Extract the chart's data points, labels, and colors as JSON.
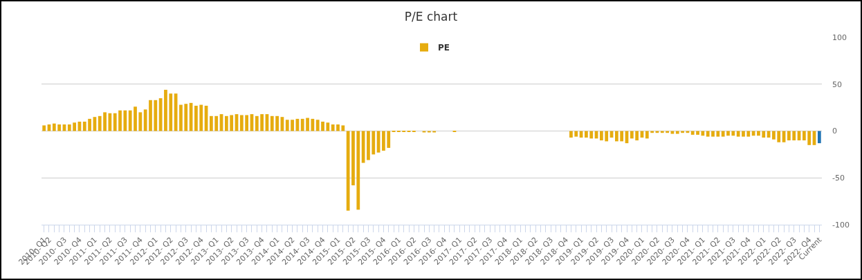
{
  "chart_data": {
    "type": "bar",
    "title": "P/E chart",
    "categories": [
      "2010- Q1",
      "2010- Q2",
      null,
      null,
      "2010- Q3",
      null,
      null,
      "2010- Q4",
      null,
      null,
      "2011- Q1",
      null,
      null,
      "2011- Q2",
      null,
      null,
      "2011- Q3",
      null,
      null,
      "2011- Q4",
      null,
      null,
      "2012- Q1",
      null,
      null,
      "2012- Q2",
      null,
      null,
      "2012- Q3",
      null,
      null,
      "2012- Q4",
      null,
      null,
      "2013- Q1",
      null,
      null,
      "2013- Q2",
      null,
      null,
      "2013- Q3",
      null,
      null,
      "2013- Q4",
      null,
      null,
      "2014- Q1",
      null,
      null,
      "2014- Q2",
      null,
      null,
      "2014- Q3",
      null,
      null,
      "2014- Q4",
      null,
      null,
      "2015- Q1",
      null,
      null,
      "2015- Q2",
      null,
      null,
      "2015- Q3",
      null,
      null,
      "2015- Q4",
      null,
      null,
      "2016- Q1",
      null,
      null,
      "2016- Q2",
      null,
      null,
      "2016- Q3",
      null,
      null,
      "2016- Q4",
      null,
      null,
      "2017- Q1",
      null,
      null,
      "2017- Q2",
      null,
      null,
      "2017- Q3",
      null,
      null,
      "2017- Q4",
      null,
      null,
      "2018- Q1",
      null,
      null,
      "2018- Q2",
      null,
      null,
      "2018- Q3",
      null,
      null,
      "2018- Q4",
      null,
      null,
      "2019- Q1",
      null,
      null,
      "2019- Q2",
      null,
      null,
      "2019- Q3",
      null,
      null,
      "2019- Q4",
      null,
      null,
      "2020- Q1",
      null,
      null,
      "2020- Q2",
      null,
      null,
      "2020- Q3",
      null,
      null,
      "2020- Q4",
      null,
      null,
      "2021- Q1",
      null,
      null,
      "2021- Q2",
      null,
      null,
      "2021- Q3",
      null,
      null,
      "2021- Q4",
      null,
      null,
      "2022- Q1",
      null,
      null,
      "2022- Q2",
      null,
      null,
      "2022- Q3",
      null,
      null,
      "2022- Q4",
      null,
      "Current"
    ],
    "series": [
      {
        "name": "PE",
        "colors": [
          "#e6ac0f",
          "#e6ac0f",
          "#e6ac0f",
          "#e6ac0f",
          "#e6ac0f",
          "#e6ac0f",
          "#e6ac0f",
          "#e6ac0f",
          "#e6ac0f",
          "#e6ac0f",
          "#e6ac0f",
          "#e6ac0f",
          "#e6ac0f",
          "#e6ac0f",
          "#e6ac0f",
          "#e6ac0f",
          "#e6ac0f",
          "#e6ac0f",
          "#e6ac0f",
          "#e6ac0f",
          "#e6ac0f",
          "#e6ac0f",
          "#e6ac0f",
          "#e6ac0f",
          "#e6ac0f",
          "#e6ac0f",
          "#e6ac0f",
          "#e6ac0f",
          "#e6ac0f",
          "#e6ac0f",
          "#e6ac0f",
          "#e6ac0f",
          "#e6ac0f",
          "#e6ac0f",
          "#e6ac0f",
          "#e6ac0f",
          "#e6ac0f",
          "#e6ac0f",
          "#e6ac0f",
          "#e6ac0f",
          "#e6ac0f",
          "#e6ac0f",
          "#e6ac0f",
          "#e6ac0f",
          "#e6ac0f",
          "#e6ac0f",
          "#e6ac0f",
          "#e6ac0f",
          "#e6ac0f",
          "#e6ac0f",
          "#e6ac0f",
          "#e6ac0f",
          "#e6ac0f",
          "#e6ac0f",
          "#e6ac0f",
          "#e6ac0f",
          "#e6ac0f",
          "#e6ac0f",
          "#e6ac0f",
          "#e6ac0f",
          "#e6ac0f",
          "#e6ac0f",
          "#e6ac0f",
          "#e6ac0f",
          "#e6ac0f",
          "#e6ac0f",
          "#e6ac0f",
          "#e6ac0f",
          "#e6ac0f",
          "#e6ac0f",
          "#e6ac0f",
          "#e6ac0f",
          "#e6ac0f",
          "#e6ac0f",
          "#e6ac0f",
          "#e6ac0f",
          "#e6ac0f",
          "#e6ac0f",
          "#e6ac0f",
          "#e6ac0f",
          "#e6ac0f",
          "#e6ac0f",
          "#e6ac0f",
          "#e6ac0f",
          "#e6ac0f",
          "#e6ac0f",
          "#e6ac0f",
          "#e6ac0f",
          "#e6ac0f",
          "#e6ac0f",
          "#e6ac0f",
          "#e6ac0f",
          "#e6ac0f",
          "#e6ac0f",
          "#e6ac0f",
          "#e6ac0f",
          "#e6ac0f",
          "#e6ac0f",
          "#e6ac0f",
          "#e6ac0f",
          "#e6ac0f",
          "#e6ac0f",
          "#e6ac0f",
          "#e6ac0f",
          "#e6ac0f",
          "#e6ac0f",
          "#e6ac0f",
          "#e6ac0f",
          "#e6ac0f",
          "#e6ac0f",
          "#e6ac0f",
          "#e6ac0f",
          "#e6ac0f",
          "#e6ac0f",
          "#e6ac0f",
          "#e6ac0f",
          "#e6ac0f",
          "#e6ac0f",
          "#e6ac0f",
          "#e6ac0f",
          "#e6ac0f",
          "#e6ac0f",
          "#e6ac0f",
          "#e6ac0f",
          "#e6ac0f",
          "#e6ac0f",
          "#e6ac0f",
          "#e6ac0f",
          "#e6ac0f",
          "#e6ac0f",
          "#e6ac0f",
          "#e6ac0f",
          "#e6ac0f",
          "#e6ac0f",
          "#e6ac0f",
          "#e6ac0f",
          "#e6ac0f",
          "#e6ac0f",
          "#e6ac0f",
          "#e6ac0f",
          "#e6ac0f",
          "#e6ac0f",
          "#e6ac0f",
          "#e6ac0f",
          "#e6ac0f",
          "#e6ac0f",
          "#e6ac0f",
          "#e6ac0f",
          "#e6ac0f",
          "#e6ac0f",
          "#e6ac0f",
          "#e6ac0f",
          "#e6ac0f",
          "#1f73b4"
        ],
        "values": [
          6,
          7,
          8,
          7,
          7,
          7,
          9,
          10,
          10,
          13,
          15,
          16,
          20,
          19,
          19,
          22,
          22,
          22,
          26,
          20,
          23,
          33,
          33,
          35,
          44,
          40,
          40,
          28,
          29,
          30,
          27,
          28,
          27,
          16,
          16,
          18,
          16,
          17,
          18,
          17,
          17,
          18,
          16,
          18,
          18,
          16,
          16,
          15,
          12,
          12,
          13,
          13,
          14,
          13,
          12,
          10,
          9,
          7,
          7,
          6,
          -85,
          -58,
          -84,
          -34,
          -31,
          -25,
          -23,
          -21,
          -18,
          -1,
          -1,
          -1,
          -1,
          -1,
          null,
          -1.5,
          -1.5,
          -1.5,
          null,
          null,
          null,
          -0.5,
          null,
          null,
          null,
          null,
          null,
          null,
          null,
          null,
          null,
          null,
          null,
          null,
          null,
          null,
          null,
          null,
          null,
          null,
          null,
          null,
          null,
          null,
          -7,
          -6,
          -7,
          -7,
          -8,
          -8,
          -10,
          -11,
          -7,
          -11,
          -11,
          -13,
          -8,
          -10,
          -7,
          -8,
          -2,
          -2,
          -2,
          -2,
          -3,
          -3,
          -2,
          -2,
          -4,
          -4,
          -5,
          -6,
          -6,
          -6,
          -6,
          -5,
          -5,
          -6,
          -6,
          -6,
          -5,
          -5,
          -7,
          -7,
          -9,
          -12,
          -12,
          -10,
          -10,
          -10,
          -10,
          -15,
          -15,
          -13
        ]
      }
    ],
    "ylim": [
      -100,
      100
    ],
    "yticks": [
      -100,
      -50,
      0,
      50,
      100
    ],
    "grid": "y",
    "legend": "top"
  }
}
